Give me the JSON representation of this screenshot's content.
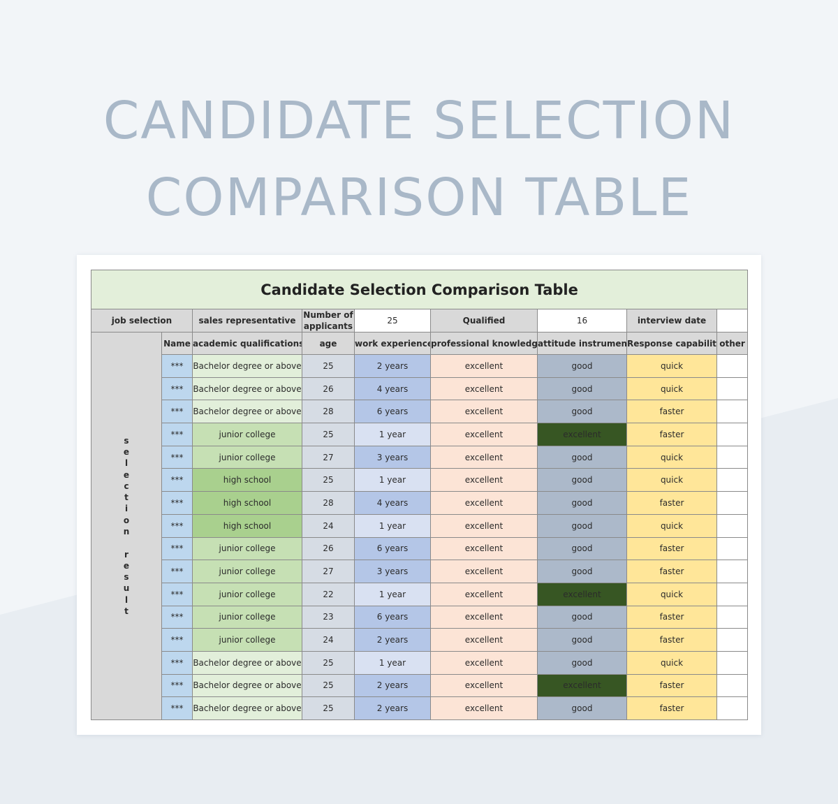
{
  "page_title_lines": [
    "CANDIDATE SELECTION",
    "COMPARISON TABLE"
  ],
  "table": {
    "title": "Candidate Selection Comparison Table",
    "info": {
      "job_selection_label": "job selection",
      "job_value": "sales representative",
      "applicants_label": "Number of applicants",
      "applicants_value": "25",
      "qualified_label": "Qualified",
      "qualified_value": "16",
      "interview_label": "interview date",
      "interview_value": ""
    },
    "side_label": [
      "s",
      "e",
      "l",
      "e",
      "c",
      "t",
      "i",
      "o",
      "n",
      "",
      "r",
      "e",
      "s",
      "u",
      "l",
      "t"
    ],
    "headers": [
      "Name",
      "academic qualifications",
      "age",
      "work experience",
      "professional knowledge",
      "attitude instrument",
      "Response capability",
      "other"
    ],
    "rows": [
      {
        "name": "***",
        "qual": "Bachelor degree or above",
        "age": "25",
        "exp": "2 years",
        "prof": "excellent",
        "att": "good",
        "resp": "quick",
        "other": ""
      },
      {
        "name": "***",
        "qual": "Bachelor degree or above",
        "age": "26",
        "exp": "4 years",
        "prof": "excellent",
        "att": "good",
        "resp": "quick",
        "other": ""
      },
      {
        "name": "***",
        "qual": "Bachelor degree or above",
        "age": "28",
        "exp": "6 years",
        "prof": "excellent",
        "att": "good",
        "resp": "faster",
        "other": ""
      },
      {
        "name": "***",
        "qual": "junior college",
        "age": "25",
        "exp": "1 year",
        "prof": "excellent",
        "att": "excellent",
        "resp": "faster",
        "other": ""
      },
      {
        "name": "***",
        "qual": "junior college",
        "age": "27",
        "exp": "3 years",
        "prof": "excellent",
        "att": "good",
        "resp": "quick",
        "other": ""
      },
      {
        "name": "***",
        "qual": "high school",
        "age": "25",
        "exp": "1 year",
        "prof": "excellent",
        "att": "good",
        "resp": "quick",
        "other": ""
      },
      {
        "name": "***",
        "qual": "high school",
        "age": "28",
        "exp": "4 years",
        "prof": "excellent",
        "att": "good",
        "resp": "faster",
        "other": ""
      },
      {
        "name": "***",
        "qual": "high school",
        "age": "24",
        "exp": "1 year",
        "prof": "excellent",
        "att": "good",
        "resp": "quick",
        "other": ""
      },
      {
        "name": "***",
        "qual": "junior college",
        "age": "26",
        "exp": "6 years",
        "prof": "excellent",
        "att": "good",
        "resp": "faster",
        "other": ""
      },
      {
        "name": "***",
        "qual": "junior college",
        "age": "27",
        "exp": "3 years",
        "prof": "excellent",
        "att": "good",
        "resp": "faster",
        "other": ""
      },
      {
        "name": "***",
        "qual": "junior college",
        "age": "22",
        "exp": "1 year",
        "prof": "excellent",
        "att": "excellent",
        "resp": "quick",
        "other": ""
      },
      {
        "name": "***",
        "qual": "junior college",
        "age": "23",
        "exp": "6 years",
        "prof": "excellent",
        "att": "good",
        "resp": "faster",
        "other": ""
      },
      {
        "name": "***",
        "qual": "junior college",
        "age": "24",
        "exp": "2 years",
        "prof": "excellent",
        "att": "good",
        "resp": "faster",
        "other": ""
      },
      {
        "name": "***",
        "qual": "Bachelor degree or above",
        "age": "25",
        "exp": "1 year",
        "prof": "excellent",
        "att": "good",
        "resp": "quick",
        "other": ""
      },
      {
        "name": "***",
        "qual": "Bachelor degree or above",
        "age": "25",
        "exp": "2 years",
        "prof": "excellent",
        "att": "excellent",
        "resp": "faster",
        "other": ""
      },
      {
        "name": "***",
        "qual": "Bachelor degree or above",
        "age": "25",
        "exp": "2 years",
        "prof": "excellent",
        "att": "good",
        "resp": "faster",
        "other": ""
      }
    ]
  }
}
